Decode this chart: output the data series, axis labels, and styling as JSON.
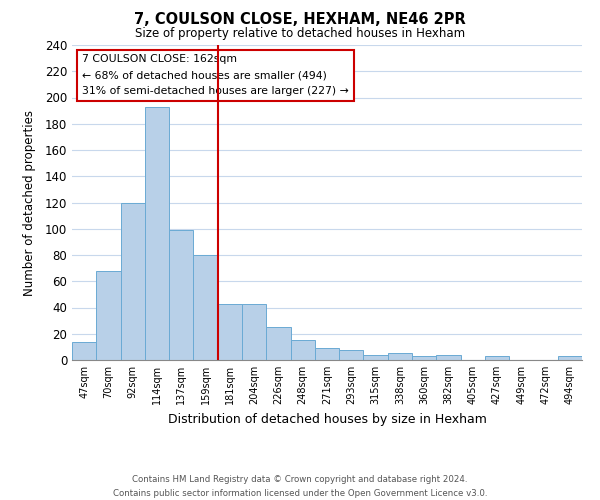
{
  "title": "7, COULSON CLOSE, HEXHAM, NE46 2PR",
  "subtitle": "Size of property relative to detached houses in Hexham",
  "xlabel": "Distribution of detached houses by size in Hexham",
  "ylabel": "Number of detached properties",
  "bar_labels": [
    "47sqm",
    "70sqm",
    "92sqm",
    "114sqm",
    "137sqm",
    "159sqm",
    "181sqm",
    "204sqm",
    "226sqm",
    "248sqm",
    "271sqm",
    "293sqm",
    "315sqm",
    "338sqm",
    "360sqm",
    "382sqm",
    "405sqm",
    "427sqm",
    "449sqm",
    "472sqm",
    "494sqm"
  ],
  "bar_heights": [
    14,
    68,
    120,
    193,
    99,
    80,
    43,
    43,
    25,
    15,
    9,
    8,
    4,
    5,
    3,
    4,
    0,
    3,
    0,
    0,
    3
  ],
  "bar_color": "#b8d0e8",
  "bar_edgecolor": "#6aaad4",
  "vline_color": "#cc0000",
  "ylim": [
    0,
    240
  ],
  "yticks": [
    0,
    20,
    40,
    60,
    80,
    100,
    120,
    140,
    160,
    180,
    200,
    220,
    240
  ],
  "annotation_title": "7 COULSON CLOSE: 162sqm",
  "annotation_line1": "← 68% of detached houses are smaller (494)",
  "annotation_line2": "31% of semi-detached houses are larger (227) →",
  "annotation_box_color": "#ffffff",
  "annotation_border_color": "#cc0000",
  "footer_line1": "Contains HM Land Registry data © Crown copyright and database right 2024.",
  "footer_line2": "Contains public sector information licensed under the Open Government Licence v3.0.",
  "background_color": "#ffffff",
  "grid_color": "#c8d8ec"
}
